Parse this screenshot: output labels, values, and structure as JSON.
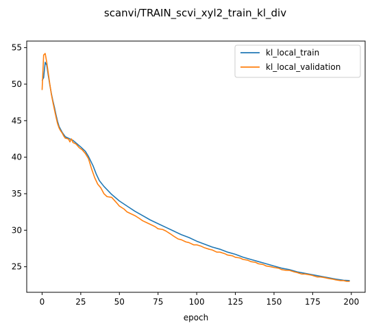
{
  "chart_data": {
    "type": "line",
    "title": "scanvi/TRAIN_scvi_xyl2_train_kl_div",
    "xlabel": "epoch",
    "ylabel": "",
    "xlim": [
      -9.95,
      208.95
    ],
    "ylim": [
      21.5,
      55.9
    ],
    "xticks": [
      0,
      25,
      50,
      75,
      100,
      125,
      150,
      175,
      200
    ],
    "yticks": [
      25,
      30,
      35,
      40,
      45,
      50,
      55
    ],
    "grid": false,
    "legend_position": "top-right",
    "series": [
      {
        "name": "kl_local_train",
        "color": "#1f77b4",
        "points": [
          [
            0,
            50.5
          ],
          [
            1,
            50.9
          ],
          [
            2,
            53.0
          ],
          [
            3,
            52.6
          ],
          [
            4,
            51.2
          ],
          [
            5,
            49.9
          ],
          [
            6,
            48.7
          ],
          [
            7,
            47.7
          ],
          [
            8,
            46.8
          ],
          [
            9,
            45.8
          ],
          [
            10,
            44.9
          ],
          [
            11,
            44.2
          ],
          [
            12,
            43.8
          ],
          [
            13,
            43.4
          ],
          [
            14,
            43.1
          ],
          [
            15,
            42.8
          ],
          [
            20,
            42.3
          ],
          [
            25,
            41.4
          ],
          [
            28,
            40.8
          ],
          [
            30,
            40.1
          ],
          [
            33,
            38.8
          ],
          [
            35,
            37.7
          ],
          [
            37,
            36.8
          ],
          [
            40,
            36.0
          ],
          [
            45,
            34.9
          ],
          [
            50,
            34.0
          ],
          [
            55,
            33.3
          ],
          [
            60,
            32.6
          ],
          [
            65,
            32.0
          ],
          [
            70,
            31.4
          ],
          [
            75,
            30.9
          ],
          [
            80,
            30.4
          ],
          [
            85,
            29.9
          ],
          [
            90,
            29.4
          ],
          [
            95,
            29.0
          ],
          [
            100,
            28.5
          ],
          [
            105,
            28.1
          ],
          [
            110,
            27.7
          ],
          [
            115,
            27.4
          ],
          [
            120,
            27.0
          ],
          [
            125,
            26.7
          ],
          [
            130,
            26.3
          ],
          [
            135,
            26.0
          ],
          [
            140,
            25.7
          ],
          [
            145,
            25.4
          ],
          [
            150,
            25.1
          ],
          [
            155,
            24.8
          ],
          [
            160,
            24.6
          ],
          [
            165,
            24.3
          ],
          [
            170,
            24.1
          ],
          [
            175,
            23.9
          ],
          [
            180,
            23.7
          ],
          [
            185,
            23.5
          ],
          [
            190,
            23.3
          ],
          [
            195,
            23.15
          ],
          [
            199,
            23.1
          ]
        ]
      },
      {
        "name": "kl_local_validation",
        "color": "#ff7f0e",
        "points": [
          [
            0,
            49.2
          ],
          [
            1,
            54.0
          ],
          [
            2,
            54.2
          ],
          [
            3,
            53.0
          ],
          [
            4,
            51.5
          ],
          [
            5,
            50.0
          ],
          [
            6,
            48.6
          ],
          [
            7,
            47.5
          ],
          [
            8,
            46.5
          ],
          [
            9,
            45.5
          ],
          [
            10,
            44.6
          ],
          [
            11,
            44.0
          ],
          [
            12,
            43.6
          ],
          [
            13,
            43.3
          ],
          [
            14,
            42.9
          ],
          [
            15,
            42.6
          ],
          [
            17,
            42.5
          ],
          [
            18,
            42.1
          ],
          [
            19,
            42.5
          ],
          [
            20,
            42.0
          ],
          [
            22,
            41.8
          ],
          [
            24,
            41.3
          ],
          [
            26,
            41.0
          ],
          [
            28,
            40.5
          ],
          [
            30,
            39.8
          ],
          [
            32,
            38.4
          ],
          [
            34,
            37.2
          ],
          [
            36,
            36.3
          ],
          [
            38,
            35.8
          ],
          [
            40,
            35.0
          ],
          [
            42,
            34.6
          ],
          [
            45,
            34.5
          ],
          [
            48,
            33.8
          ],
          [
            50,
            33.3
          ],
          [
            53,
            32.9
          ],
          [
            55,
            32.5
          ],
          [
            58,
            32.2
          ],
          [
            60,
            32.0
          ],
          [
            63,
            31.6
          ],
          [
            65,
            31.3
          ],
          [
            68,
            31.0
          ],
          [
            70,
            30.8
          ],
          [
            73,
            30.5
          ],
          [
            75,
            30.2
          ],
          [
            78,
            30.1
          ],
          [
            80,
            29.9
          ],
          [
            83,
            29.5
          ],
          [
            85,
            29.2
          ],
          [
            88,
            28.8
          ],
          [
            90,
            28.7
          ],
          [
            93,
            28.4
          ],
          [
            95,
            28.3
          ],
          [
            98,
            28.0
          ],
          [
            100,
            28.0
          ],
          [
            103,
            27.8
          ],
          [
            105,
            27.6
          ],
          [
            108,
            27.4
          ],
          [
            110,
            27.3
          ],
          [
            113,
            27.0
          ],
          [
            115,
            27.0
          ],
          [
            118,
            26.8
          ],
          [
            120,
            26.6
          ],
          [
            123,
            26.5
          ],
          [
            125,
            26.3
          ],
          [
            128,
            26.2
          ],
          [
            130,
            26.0
          ],
          [
            133,
            25.9
          ],
          [
            135,
            25.7
          ],
          [
            138,
            25.6
          ],
          [
            140,
            25.4
          ],
          [
            143,
            25.3
          ],
          [
            145,
            25.1
          ],
          [
            148,
            25.0
          ],
          [
            150,
            24.9
          ],
          [
            153,
            24.8
          ],
          [
            155,
            24.6
          ],
          [
            158,
            24.5
          ],
          [
            160,
            24.5
          ],
          [
            163,
            24.3
          ],
          [
            165,
            24.2
          ],
          [
            168,
            24.0
          ],
          [
            170,
            24.0
          ],
          [
            173,
            23.9
          ],
          [
            175,
            23.8
          ],
          [
            178,
            23.6
          ],
          [
            180,
            23.6
          ],
          [
            183,
            23.5
          ],
          [
            185,
            23.4
          ],
          [
            188,
            23.3
          ],
          [
            190,
            23.2
          ],
          [
            193,
            23.1
          ],
          [
            195,
            23.1
          ],
          [
            197,
            23.0
          ],
          [
            199,
            23.0
          ]
        ]
      }
    ]
  }
}
